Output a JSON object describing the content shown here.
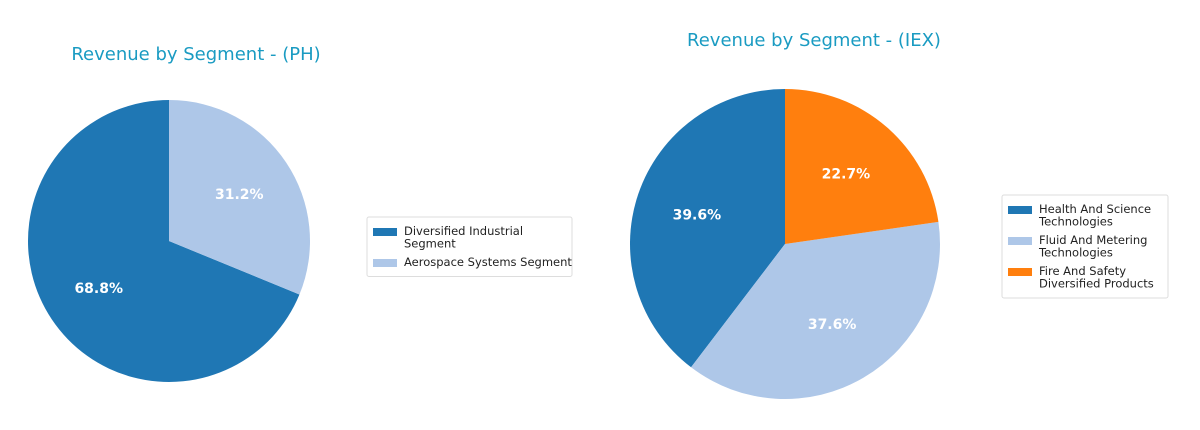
{
  "chart_data": [
    {
      "type": "pie",
      "title": "Revenue by Segment - (PH)",
      "categories": [
        "Diversified Industrial Segment",
        "Aerospace Systems Segment"
      ],
      "values": [
        68.8,
        31.2
      ],
      "labels": [
        "68.8%",
        "31.2%"
      ],
      "colors": [
        "#1f77b4",
        "#aec7e8"
      ],
      "start_angle": 90,
      "direction": "counterclockwise",
      "legend": {
        "position": "right",
        "entries": [
          {
            "lines": [
              "Diversified Industrial",
              "Segment"
            ],
            "color": "#1f77b4"
          },
          {
            "lines": [
              "Aerospace Systems Segment"
            ],
            "color": "#aec7e8"
          }
        ]
      }
    },
    {
      "type": "pie",
      "title": "Revenue by Segment - (IEX)",
      "categories": [
        "Health And Science Technologies",
        "Fluid And Metering Technologies",
        "Fire And Safety Diversified Products"
      ],
      "values": [
        39.6,
        37.6,
        22.7
      ],
      "labels": [
        "39.6%",
        "37.6%",
        "22.7%"
      ],
      "colors": [
        "#1f77b4",
        "#aec7e8",
        "#ff7f0e"
      ],
      "start_angle": 90,
      "direction": "counterclockwise",
      "legend": {
        "position": "right",
        "entries": [
          {
            "lines": [
              "Health And Science",
              "Technologies"
            ],
            "color": "#1f77b4"
          },
          {
            "lines": [
              "Fluid And Metering",
              "Technologies"
            ],
            "color": "#aec7e8"
          },
          {
            "lines": [
              "Fire And Safety",
              "Diversified Products"
            ],
            "color": "#ff7f0e"
          }
        ]
      }
    }
  ],
  "title_color": "#1a9bc2"
}
